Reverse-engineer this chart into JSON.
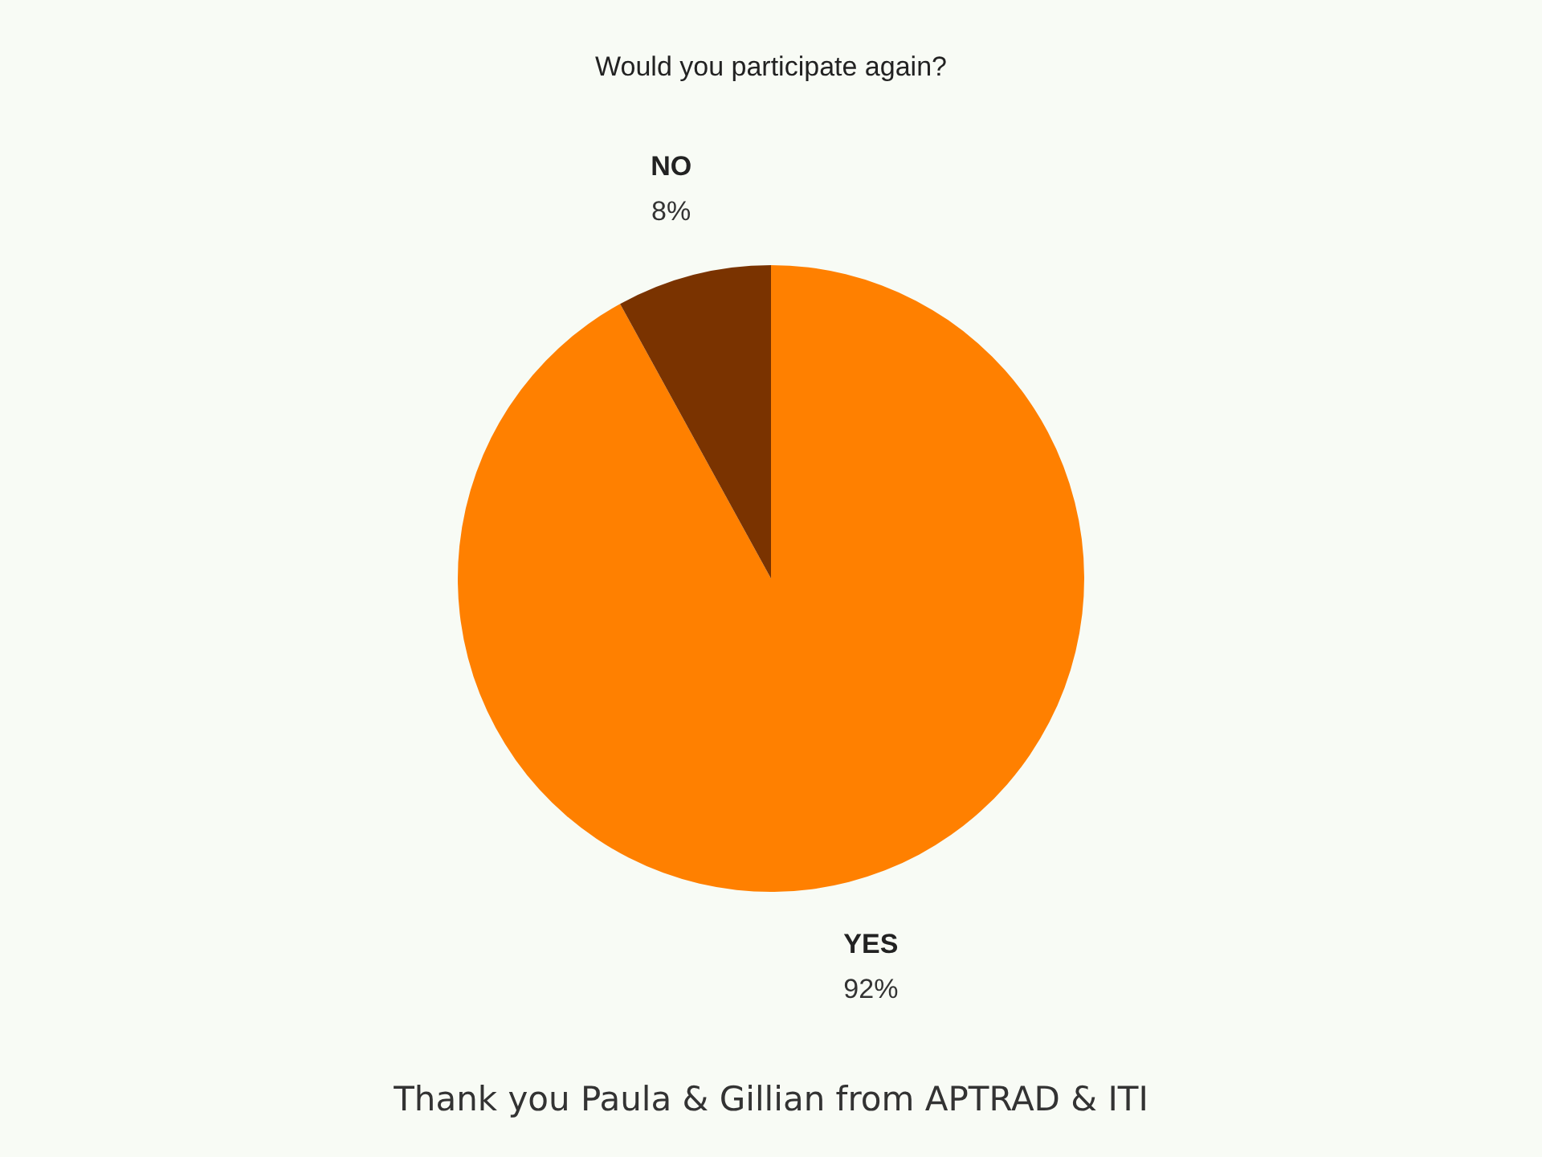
{
  "chart_data": {
    "type": "pie",
    "title": "Would you participate again?",
    "categories": [
      "YES",
      "NO"
    ],
    "values": [
      92,
      8
    ],
    "colors": [
      "#ff8000",
      "#7a3300"
    ],
    "value_labels": [
      "92%",
      "8%"
    ],
    "legend": false,
    "annotations": [
      "Thank you Paula & Gillian from APTRAD & ITI"
    ]
  }
}
